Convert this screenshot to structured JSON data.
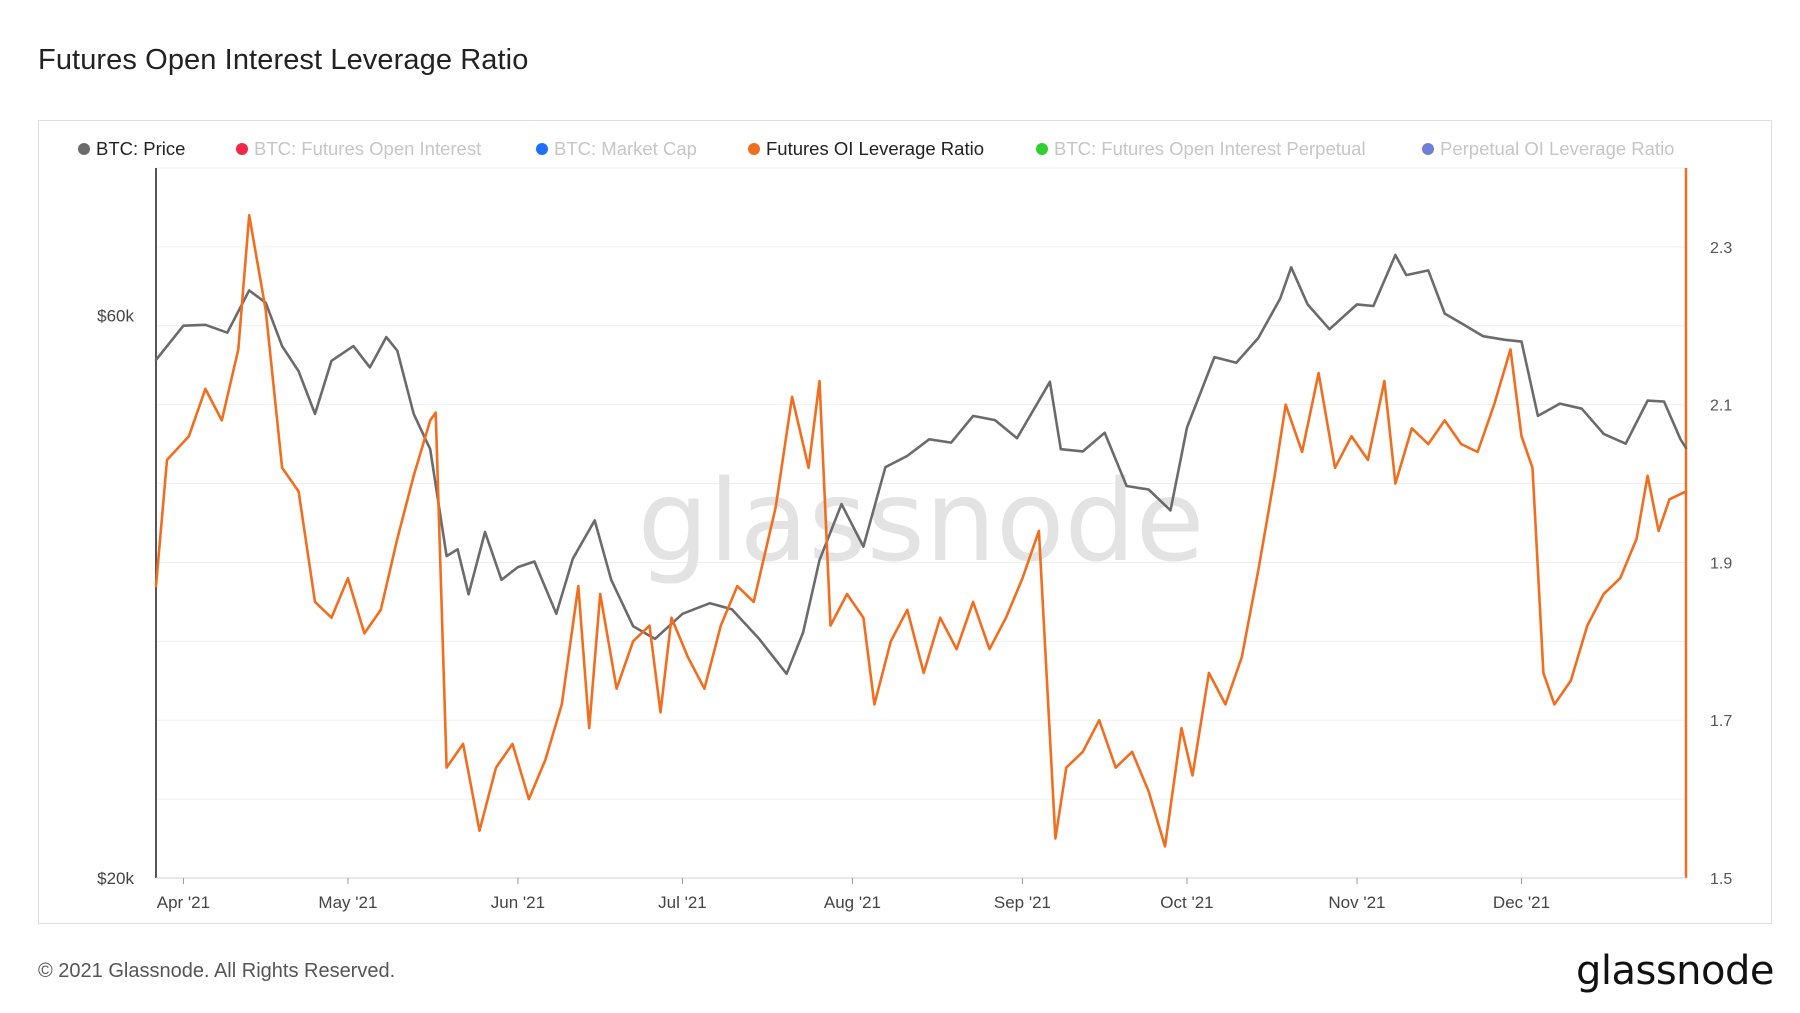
{
  "page": {
    "title": "Futures Open Interest Leverage Ratio",
    "copyright": "© 2021 Glassnode. All Rights Reserved.",
    "logo": "glassnode",
    "watermark": "glassnode"
  },
  "legend": [
    {
      "label": "BTC: Price",
      "color": "#6b6b6b",
      "active": true
    },
    {
      "label": "BTC: Futures Open Interest",
      "color": "#f0284a",
      "active": false
    },
    {
      "label": "BTC: Market Cap",
      "color": "#1f6fff",
      "active": false
    },
    {
      "label": "Futures OI Leverage Ratio",
      "color": "#f26e1f",
      "active": true
    },
    {
      "label": "BTC: Futures Open Interest Perpetual",
      "color": "#2fd12f",
      "active": false
    },
    {
      "label": "Perpetual OI Leverage Ratio",
      "color": "#6f7fd6",
      "active": false
    }
  ],
  "chart_data": {
    "type": "line",
    "title": "Futures Open Interest Leverage Ratio",
    "x_range": [
      "2021-03-27",
      "2021-12-31"
    ],
    "x_ticks": [
      {
        "date": "2021-04-01",
        "label": "Apr '21"
      },
      {
        "date": "2021-05-01",
        "label": "May '21"
      },
      {
        "date": "2021-06-01",
        "label": "Jun '21"
      },
      {
        "date": "2021-07-01",
        "label": "Jul '21"
      },
      {
        "date": "2021-08-01",
        "label": "Aug '21"
      },
      {
        "date": "2021-09-01",
        "label": "Sep '21"
      },
      {
        "date": "2021-10-01",
        "label": "Oct '21"
      },
      {
        "date": "2021-11-01",
        "label": "Nov '21"
      },
      {
        "date": "2021-12-01",
        "label": "Dec '21"
      }
    ],
    "y_left": {
      "scale": "log",
      "range": [
        20000,
        80000
      ],
      "ticks": [
        {
          "value": 20000,
          "label": "$20k"
        },
        {
          "value": 60000,
          "label": "$60k"
        }
      ]
    },
    "y_right": {
      "scale": "linear",
      "range": [
        1.5,
        2.4
      ],
      "ticks": [
        {
          "value": 1.5,
          "label": "1.5"
        },
        {
          "value": 1.7,
          "label": "1.7"
        },
        {
          "value": 1.9,
          "label": "1.9"
        },
        {
          "value": 2.1,
          "label": "2.1"
        },
        {
          "value": 2.3,
          "label": "2.3"
        }
      ]
    },
    "series": [
      {
        "name": "BTC: Price",
        "axis": "left",
        "color": "#6b6b6b",
        "points": [
          [
            "2021-03-27",
            55000
          ],
          [
            "2021-04-01",
            58800
          ],
          [
            "2021-04-05",
            58900
          ],
          [
            "2021-04-09",
            58000
          ],
          [
            "2021-04-13",
            63000
          ],
          [
            "2021-04-16",
            61500
          ],
          [
            "2021-04-19",
            56500
          ],
          [
            "2021-04-22",
            53800
          ],
          [
            "2021-04-25",
            49500
          ],
          [
            "2021-04-28",
            54900
          ],
          [
            "2021-05-02",
            56500
          ],
          [
            "2021-05-05",
            54200
          ],
          [
            "2021-05-08",
            57500
          ],
          [
            "2021-05-10",
            56000
          ],
          [
            "2021-05-13",
            49500
          ],
          [
            "2021-05-16",
            46200
          ],
          [
            "2021-05-19",
            37500
          ],
          [
            "2021-05-21",
            38000
          ],
          [
            "2021-05-23",
            34800
          ],
          [
            "2021-05-26",
            39300
          ],
          [
            "2021-05-29",
            35800
          ],
          [
            "2021-06-01",
            36700
          ],
          [
            "2021-06-04",
            37100
          ],
          [
            "2021-06-08",
            33500
          ],
          [
            "2021-06-11",
            37300
          ],
          [
            "2021-06-15",
            40200
          ],
          [
            "2021-06-18",
            35800
          ],
          [
            "2021-06-22",
            32700
          ],
          [
            "2021-06-26",
            31900
          ],
          [
            "2021-07-01",
            33500
          ],
          [
            "2021-07-06",
            34200
          ],
          [
            "2021-07-10",
            33800
          ],
          [
            "2021-07-15",
            31900
          ],
          [
            "2021-07-20",
            29800
          ],
          [
            "2021-07-23",
            32300
          ],
          [
            "2021-07-26",
            37200
          ],
          [
            "2021-07-30",
            41500
          ],
          [
            "2021-08-03",
            38200
          ],
          [
            "2021-08-07",
            44600
          ],
          [
            "2021-08-11",
            45600
          ],
          [
            "2021-08-15",
            47100
          ],
          [
            "2021-08-19",
            46800
          ],
          [
            "2021-08-23",
            49300
          ],
          [
            "2021-08-27",
            48900
          ],
          [
            "2021-08-31",
            47200
          ],
          [
            "2021-09-06",
            52700
          ],
          [
            "2021-09-08",
            46200
          ],
          [
            "2021-09-12",
            46000
          ],
          [
            "2021-09-16",
            47700
          ],
          [
            "2021-09-20",
            43000
          ],
          [
            "2021-09-24",
            42700
          ],
          [
            "2021-09-28",
            41000
          ],
          [
            "2021-10-01",
            48200
          ],
          [
            "2021-10-06",
            55300
          ],
          [
            "2021-10-10",
            54700
          ],
          [
            "2021-10-14",
            57400
          ],
          [
            "2021-10-18",
            62000
          ],
          [
            "2021-10-20",
            65900
          ],
          [
            "2021-10-23",
            61300
          ],
          [
            "2021-10-27",
            58400
          ],
          [
            "2021-11-01",
            61300
          ],
          [
            "2021-11-04",
            61100
          ],
          [
            "2021-11-08",
            67500
          ],
          [
            "2021-11-10",
            64900
          ],
          [
            "2021-11-14",
            65500
          ],
          [
            "2021-11-17",
            60200
          ],
          [
            "2021-11-20",
            59100
          ],
          [
            "2021-11-24",
            57600
          ],
          [
            "2021-11-28",
            57200
          ],
          [
            "2021-12-01",
            57000
          ],
          [
            "2021-12-04",
            49300
          ],
          [
            "2021-12-08",
            50500
          ],
          [
            "2021-12-12",
            50000
          ],
          [
            "2021-12-16",
            47600
          ],
          [
            "2021-12-20",
            46700
          ],
          [
            "2021-12-24",
            50800
          ],
          [
            "2021-12-27",
            50700
          ],
          [
            "2021-12-30",
            47100
          ],
          [
            "2021-12-31",
            46300
          ]
        ]
      },
      {
        "name": "Futures OI Leverage Ratio",
        "axis": "right",
        "color": "#f26e1f",
        "points": [
          [
            "2021-03-27",
            1.87
          ],
          [
            "2021-03-29",
            2.03
          ],
          [
            "2021-04-02",
            2.06
          ],
          [
            "2021-04-05",
            2.12
          ],
          [
            "2021-04-08",
            2.08
          ],
          [
            "2021-04-11",
            2.17
          ],
          [
            "2021-04-13",
            2.34
          ],
          [
            "2021-04-16",
            2.22
          ],
          [
            "2021-04-19",
            2.02
          ],
          [
            "2021-04-22",
            1.99
          ],
          [
            "2021-04-25",
            1.85
          ],
          [
            "2021-04-28",
            1.83
          ],
          [
            "2021-05-01",
            1.88
          ],
          [
            "2021-05-04",
            1.81
          ],
          [
            "2021-05-07",
            1.84
          ],
          [
            "2021-05-10",
            1.93
          ],
          [
            "2021-05-13",
            2.01
          ],
          [
            "2021-05-16",
            2.08
          ],
          [
            "2021-05-17",
            2.09
          ],
          [
            "2021-05-19",
            1.64
          ],
          [
            "2021-05-22",
            1.67
          ],
          [
            "2021-05-25",
            1.56
          ],
          [
            "2021-05-28",
            1.64
          ],
          [
            "2021-05-31",
            1.67
          ],
          [
            "2021-06-03",
            1.6
          ],
          [
            "2021-06-06",
            1.65
          ],
          [
            "2021-06-09",
            1.72
          ],
          [
            "2021-06-12",
            1.87
          ],
          [
            "2021-06-14",
            1.69
          ],
          [
            "2021-06-16",
            1.86
          ],
          [
            "2021-06-19",
            1.74
          ],
          [
            "2021-06-22",
            1.8
          ],
          [
            "2021-06-25",
            1.82
          ],
          [
            "2021-06-27",
            1.71
          ],
          [
            "2021-06-29",
            1.83
          ],
          [
            "2021-07-02",
            1.78
          ],
          [
            "2021-07-05",
            1.74
          ],
          [
            "2021-07-08",
            1.82
          ],
          [
            "2021-07-11",
            1.87
          ],
          [
            "2021-07-14",
            1.85
          ],
          [
            "2021-07-18",
            1.97
          ],
          [
            "2021-07-21",
            2.11
          ],
          [
            "2021-07-24",
            2.02
          ],
          [
            "2021-07-26",
            2.13
          ],
          [
            "2021-07-28",
            1.82
          ],
          [
            "2021-07-31",
            1.86
          ],
          [
            "2021-08-03",
            1.83
          ],
          [
            "2021-08-05",
            1.72
          ],
          [
            "2021-08-08",
            1.8
          ],
          [
            "2021-08-11",
            1.84
          ],
          [
            "2021-08-14",
            1.76
          ],
          [
            "2021-08-17",
            1.83
          ],
          [
            "2021-08-20",
            1.79
          ],
          [
            "2021-08-23",
            1.85
          ],
          [
            "2021-08-26",
            1.79
          ],
          [
            "2021-08-29",
            1.83
          ],
          [
            "2021-09-01",
            1.88
          ],
          [
            "2021-09-04",
            1.94
          ],
          [
            "2021-09-07",
            1.55
          ],
          [
            "2021-09-09",
            1.64
          ],
          [
            "2021-09-12",
            1.66
          ],
          [
            "2021-09-15",
            1.7
          ],
          [
            "2021-09-18",
            1.64
          ],
          [
            "2021-09-21",
            1.66
          ],
          [
            "2021-09-24",
            1.61
          ],
          [
            "2021-09-27",
            1.54
          ],
          [
            "2021-09-30",
            1.69
          ],
          [
            "2021-10-02",
            1.63
          ],
          [
            "2021-10-05",
            1.76
          ],
          [
            "2021-10-08",
            1.72
          ],
          [
            "2021-10-11",
            1.78
          ],
          [
            "2021-10-14",
            1.89
          ],
          [
            "2021-10-17",
            2.01
          ],
          [
            "2021-10-19",
            2.1
          ],
          [
            "2021-10-22",
            2.04
          ],
          [
            "2021-10-25",
            2.14
          ],
          [
            "2021-10-28",
            2.02
          ],
          [
            "2021-10-31",
            2.06
          ],
          [
            "2021-11-03",
            2.03
          ],
          [
            "2021-11-06",
            2.13
          ],
          [
            "2021-11-08",
            2.0
          ],
          [
            "2021-11-11",
            2.07
          ],
          [
            "2021-11-14",
            2.05
          ],
          [
            "2021-11-17",
            2.08
          ],
          [
            "2021-11-20",
            2.05
          ],
          [
            "2021-11-23",
            2.04
          ],
          [
            "2021-11-26",
            2.1
          ],
          [
            "2021-11-29",
            2.17
          ],
          [
            "2021-12-01",
            2.06
          ],
          [
            "2021-12-03",
            2.02
          ],
          [
            "2021-12-05",
            1.76
          ],
          [
            "2021-12-07",
            1.72
          ],
          [
            "2021-12-10",
            1.75
          ],
          [
            "2021-12-13",
            1.82
          ],
          [
            "2021-12-16",
            1.86
          ],
          [
            "2021-12-19",
            1.88
          ],
          [
            "2021-12-22",
            1.93
          ],
          [
            "2021-12-24",
            2.01
          ],
          [
            "2021-12-26",
            1.94
          ],
          [
            "2021-12-28",
            1.98
          ],
          [
            "2021-12-31",
            1.99
          ]
        ]
      }
    ]
  }
}
